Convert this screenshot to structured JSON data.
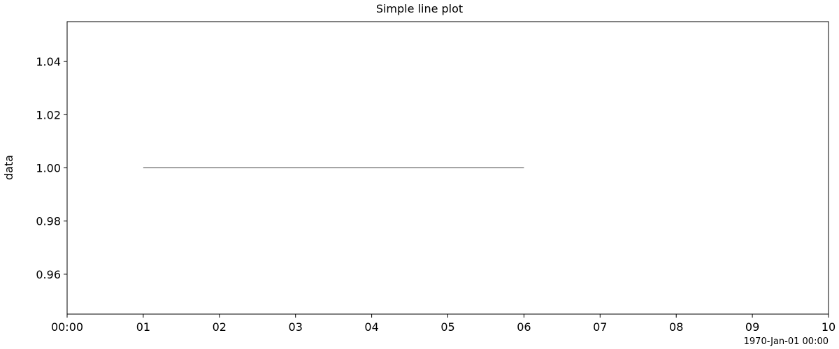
{
  "chart_data": {
    "type": "line",
    "title": "Simple line plot",
    "xlabel": "",
    "ylabel": "data",
    "x_unit": "hours",
    "x_offset_label": "1970-Jan-01 00:00",
    "xlim": [
      0,
      10
    ],
    "ylim": [
      0.945,
      1.055
    ],
    "x_ticks": [
      0,
      1,
      2,
      3,
      4,
      5,
      6,
      7,
      8,
      9,
      10
    ],
    "x_tick_labels": [
      "00:00",
      "01",
      "02",
      "03",
      "04",
      "05",
      "06",
      "07",
      "08",
      "09",
      "10"
    ],
    "y_ticks": [
      0.96,
      0.98,
      1.0,
      1.02,
      1.04
    ],
    "y_tick_labels": [
      "0.96",
      "0.98",
      "1.00",
      "1.02",
      "1.04"
    ],
    "grid": false,
    "legend": false,
    "series": [
      {
        "color": "#000000",
        "x": [
          1,
          2,
          3,
          4,
          5,
          6
        ],
        "y": [
          1.0,
          1.0,
          1.0,
          1.0,
          1.0,
          1.0
        ]
      }
    ]
  }
}
